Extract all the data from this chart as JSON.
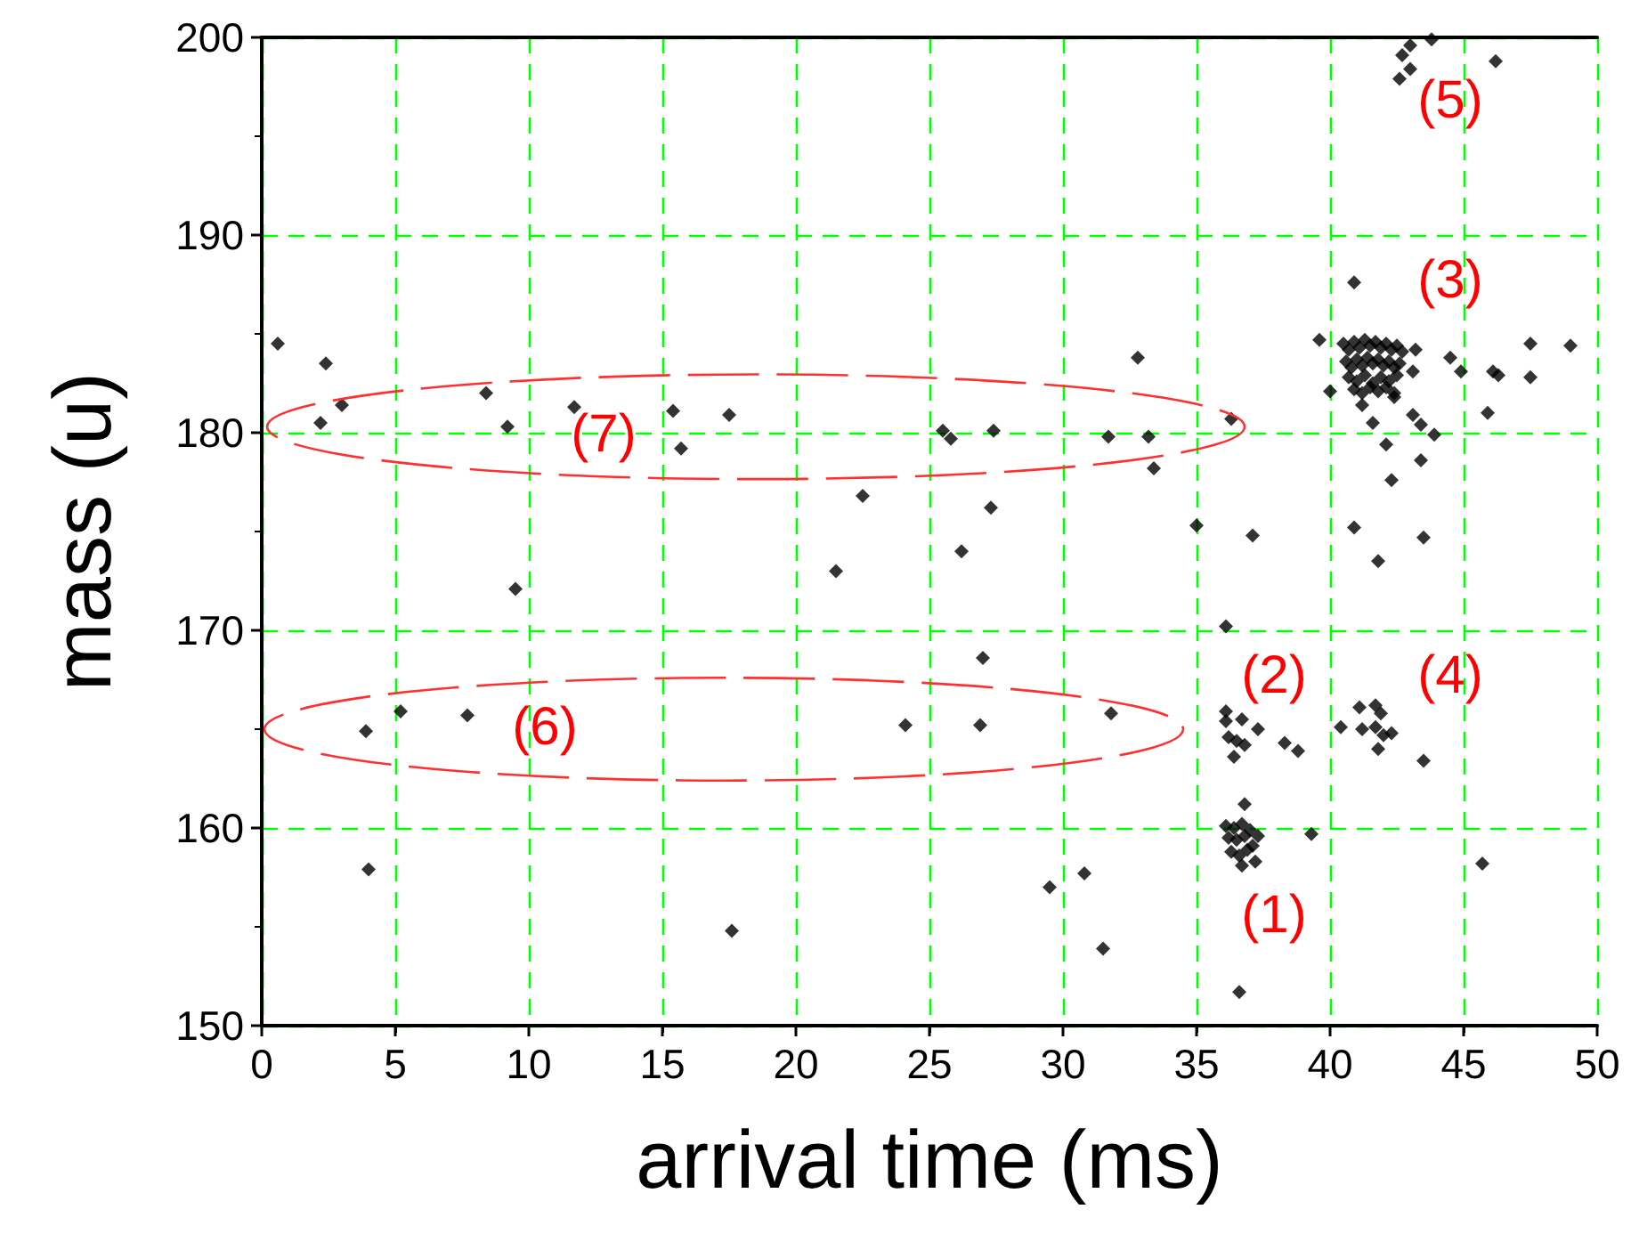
{
  "chart_data": {
    "type": "scatter",
    "xlabel": "arrival time (ms)",
    "ylabel": "mass (u)",
    "xlim": [
      0,
      50
    ],
    "xticks": [
      0,
      5,
      10,
      15,
      20,
      25,
      30,
      35,
      40,
      45,
      50
    ],
    "ylim": [
      150,
      200
    ],
    "yticks": [
      150,
      160,
      170,
      180,
      190,
      200
    ],
    "grid": true,
    "marker": "diamond",
    "series": [
      {
        "color": "#000000",
        "x": [
          0.6,
          2.4,
          2.2,
          3.0,
          8.4,
          9.2,
          11.7,
          15.4,
          15.7,
          17.5,
          22.5,
          21.5,
          9.5,
          25.5,
          25.8,
          27.4,
          31.7,
          33.2,
          33.4,
          32.8,
          36.3,
          27.3,
          26.2,
          35.0,
          37.1,
          36.1,
          27.0,
          40.9,
          39.6,
          40.0,
          43.2,
          43.1,
          42.4,
          41.2,
          40.5,
          40.7,
          40.9,
          41.1,
          41.3,
          41.5,
          41.7,
          41.9,
          42.1,
          42.3,
          42.5,
          42.7,
          40.6,
          40.8,
          41.0,
          41.2,
          41.4,
          41.6,
          41.8,
          42.0,
          42.2,
          42.4,
          42.6,
          40.7,
          41.0,
          41.3,
          41.6,
          41.9,
          42.2,
          42.5,
          40.9,
          41.2,
          41.5,
          41.8,
          42.1,
          42.4,
          44.5,
          44.9,
          46.1,
          46.3,
          47.5,
          49.0,
          47.5,
          45.9,
          41.6,
          43.1,
          43.4,
          43.9,
          42.1,
          43.4,
          42.3,
          40.9,
          41.8,
          43.5,
          3.9,
          5.2,
          7.7,
          24.1,
          4.0,
          17.6,
          26.9,
          31.8,
          36.1,
          36.1,
          36.7,
          37.3,
          36.2,
          36.5,
          36.8,
          36.4,
          38.3,
          38.8,
          40.4,
          41.1,
          41.7,
          41.9,
          41.2,
          41.7,
          42.0,
          42.3,
          41.8,
          43.5,
          36.8,
          36.1,
          36.4,
          36.7,
          37.0,
          37.3,
          36.2,
          36.5,
          36.8,
          37.1,
          36.3,
          36.6,
          36.9,
          37.2,
          36.7,
          39.3,
          45.7,
          29.5,
          30.8,
          31.5,
          36.6,
          42.6,
          43.0,
          42.7,
          43.0,
          43.8,
          46.2
        ],
        "values": [
          184.5,
          183.5,
          180.5,
          181.4,
          182.0,
          180.3,
          181.3,
          181.1,
          179.2,
          180.9,
          176.8,
          173.0,
          172.1,
          180.1,
          179.7,
          180.1,
          179.8,
          179.8,
          178.2,
          183.8,
          180.7,
          176.2,
          174.0,
          175.3,
          174.8,
          170.2,
          168.6,
          187.6,
          184.7,
          182.1,
          184.2,
          183.1,
          181.8,
          181.4,
          184.5,
          184.2,
          184.6,
          184.3,
          184.7,
          184.4,
          184.6,
          184.3,
          184.5,
          184.2,
          184.4,
          184.1,
          183.6,
          183.3,
          183.7,
          183.4,
          183.8,
          183.5,
          183.7,
          183.4,
          183.6,
          183.3,
          183.5,
          182.8,
          182.6,
          182.9,
          182.5,
          182.8,
          182.6,
          182.9,
          182.2,
          182.0,
          182.3,
          182.1,
          182.3,
          182.0,
          183.8,
          183.1,
          183.1,
          182.9,
          184.5,
          184.4,
          182.8,
          181.0,
          180.5,
          180.9,
          180.4,
          179.9,
          179.4,
          178.6,
          177.6,
          175.2,
          173.5,
          174.7,
          164.9,
          165.9,
          165.7,
          165.2,
          157.9,
          154.8,
          165.2,
          165.8,
          165.9,
          165.4,
          165.5,
          165.0,
          164.6,
          164.4,
          164.2,
          163.6,
          164.3,
          163.9,
          165.1,
          166.1,
          166.2,
          165.8,
          165.0,
          165.1,
          164.7,
          164.8,
          164.0,
          163.4,
          161.2,
          160.1,
          160.0,
          160.2,
          159.9,
          159.6,
          159.5,
          159.4,
          159.6,
          159.1,
          158.8,
          158.6,
          158.9,
          158.3,
          158.1,
          159.7,
          158.2,
          157.0,
          157.7,
          153.9,
          151.7,
          197.9,
          198.4,
          199.1,
          199.6,
          199.9,
          198.8
        ]
      }
    ],
    "annotations": [
      "(1)",
      "(2)",
      "(3)",
      "(4)",
      "(5)",
      "(6)",
      "(7)"
    ]
  }
}
